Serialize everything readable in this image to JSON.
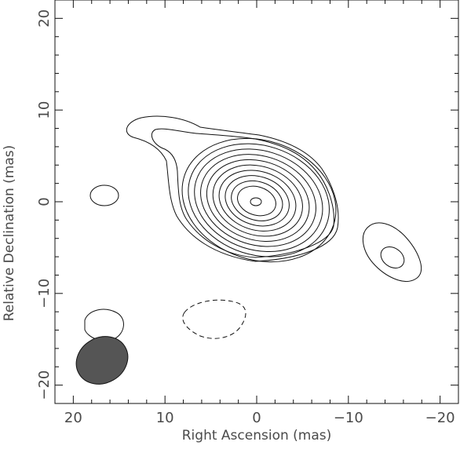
{
  "chart_data": {
    "type": "contour",
    "xlabel": "Right Ascension  (mas)",
    "ylabel": "Relative Declination  (mas)",
    "xlim": [
      22,
      -22
    ],
    "ylim": [
      -22,
      22
    ],
    "x_ticks": [
      20,
      10,
      0,
      -10,
      -20
    ],
    "x_tick_labels": [
      "20",
      "10",
      "0",
      "−10",
      "−20"
    ],
    "y_ticks": [
      20,
      10,
      0,
      -10,
      -20
    ],
    "y_tick_labels": [
      "20",
      "10",
      "0",
      "−10",
      "−20"
    ],
    "main_source": {
      "center": [
        0,
        0
      ],
      "levels": 13
    },
    "beam": {
      "center": [
        16.3,
        -17.1
      ],
      "major": 3.0,
      "minor": 2.4,
      "color": "#555555"
    }
  }
}
